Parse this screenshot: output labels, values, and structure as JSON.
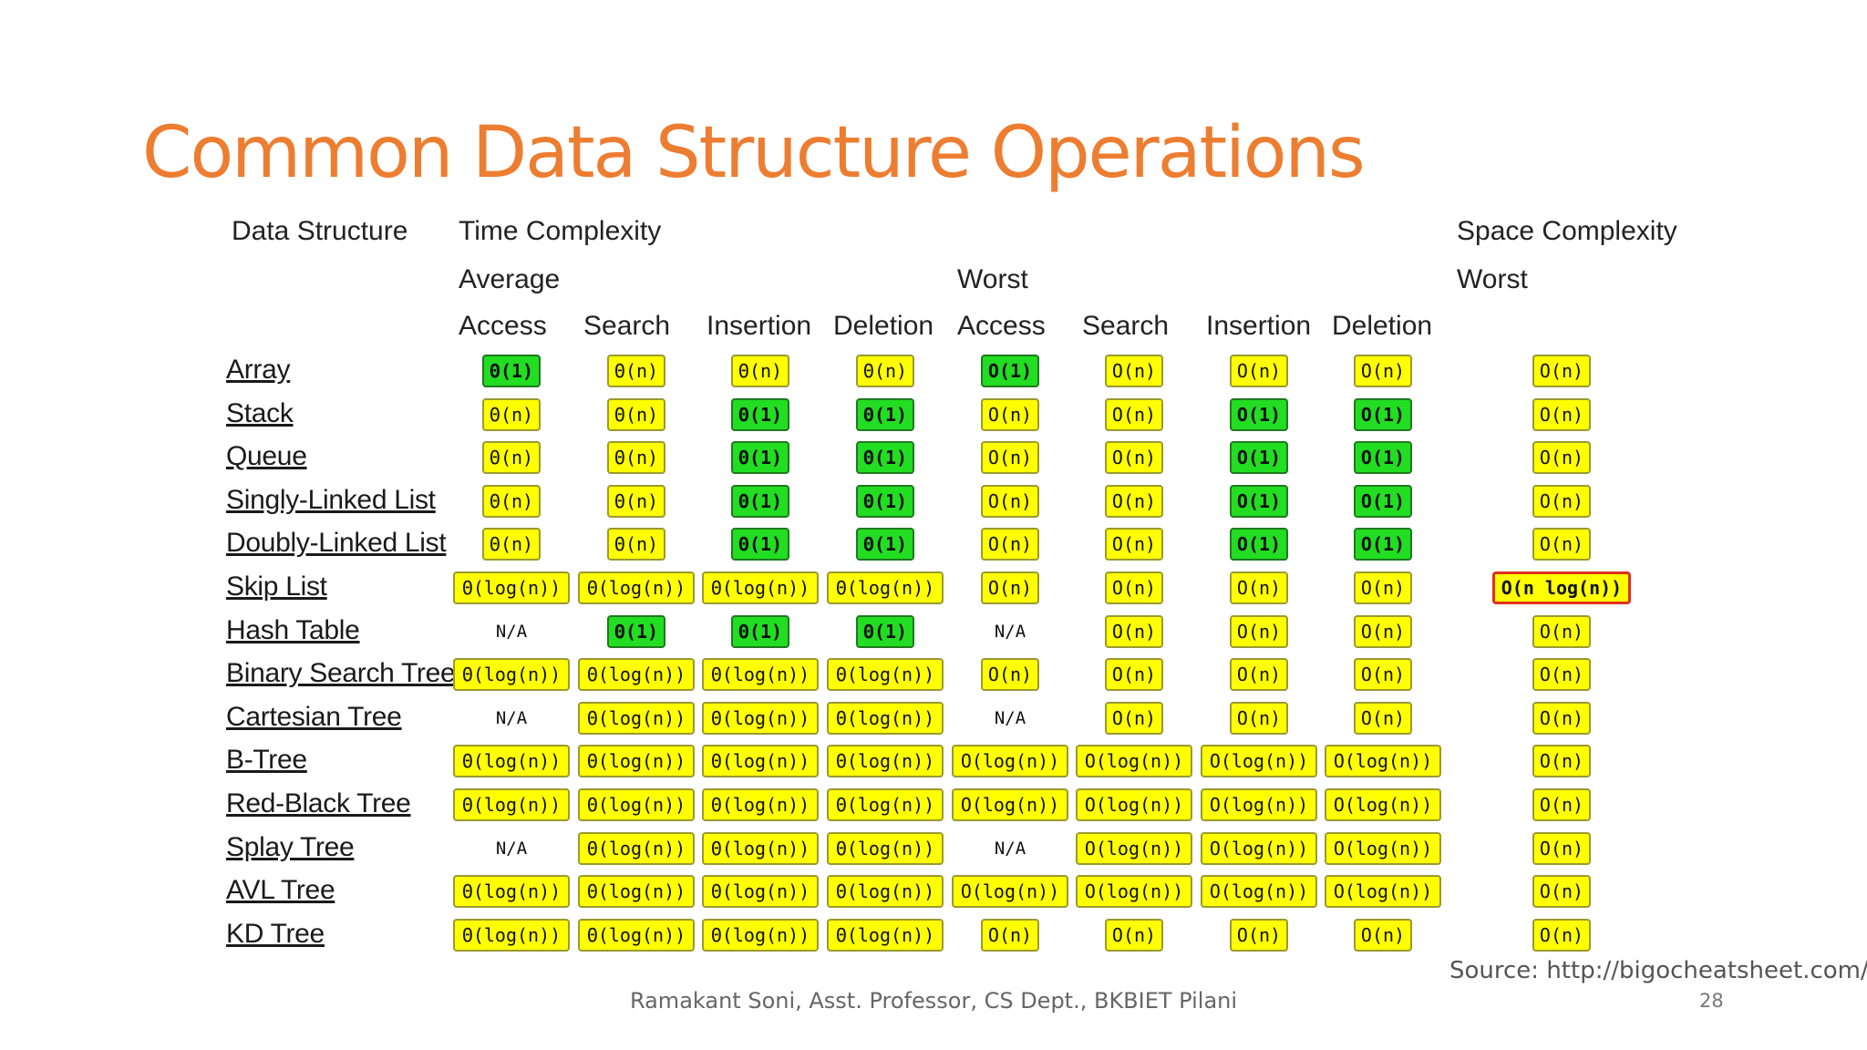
{
  "title": "Common Data Structure Operations",
  "headers": {
    "data_structure": "Data Structure",
    "time_complexity": "Time Complexity",
    "space_complexity": "Space Complexity",
    "average": "Average",
    "worst": "Worst",
    "space_worst": "Worst",
    "columns": [
      "Access",
      "Search",
      "Insertion",
      "Deletion",
      "Access",
      "Search",
      "Insertion",
      "Deletion"
    ]
  },
  "colors": {
    "title": "#ED7D31",
    "good": "#22dd22",
    "fair": "#ffff00",
    "bad_border": "#e0301e"
  },
  "rows": [
    {
      "name": "Array",
      "cells": [
        [
          "Θ(1)",
          "green"
        ],
        [
          "Θ(n)",
          "yellow"
        ],
        [
          "Θ(n)",
          "yellow"
        ],
        [
          "Θ(n)",
          "yellow"
        ],
        [
          "O(1)",
          "green"
        ],
        [
          "O(n)",
          "yellow"
        ],
        [
          "O(n)",
          "yellow"
        ],
        [
          "O(n)",
          "yellow"
        ],
        [
          "O(n)",
          "yellow"
        ]
      ]
    },
    {
      "name": "Stack",
      "cells": [
        [
          "Θ(n)",
          "yellow"
        ],
        [
          "Θ(n)",
          "yellow"
        ],
        [
          "Θ(1)",
          "green"
        ],
        [
          "Θ(1)",
          "green"
        ],
        [
          "O(n)",
          "yellow"
        ],
        [
          "O(n)",
          "yellow"
        ],
        [
          "O(1)",
          "green"
        ],
        [
          "O(1)",
          "green"
        ],
        [
          "O(n)",
          "yellow"
        ]
      ]
    },
    {
      "name": "Queue",
      "cells": [
        [
          "Θ(n)",
          "yellow"
        ],
        [
          "Θ(n)",
          "yellow"
        ],
        [
          "Θ(1)",
          "green"
        ],
        [
          "Θ(1)",
          "green"
        ],
        [
          "O(n)",
          "yellow"
        ],
        [
          "O(n)",
          "yellow"
        ],
        [
          "O(1)",
          "green"
        ],
        [
          "O(1)",
          "green"
        ],
        [
          "O(n)",
          "yellow"
        ]
      ]
    },
    {
      "name": "Singly-Linked List",
      "cells": [
        [
          "Θ(n)",
          "yellow"
        ],
        [
          "Θ(n)",
          "yellow"
        ],
        [
          "Θ(1)",
          "green"
        ],
        [
          "Θ(1)",
          "green"
        ],
        [
          "O(n)",
          "yellow"
        ],
        [
          "O(n)",
          "yellow"
        ],
        [
          "O(1)",
          "green"
        ],
        [
          "O(1)",
          "green"
        ],
        [
          "O(n)",
          "yellow"
        ]
      ]
    },
    {
      "name": "Doubly-Linked List",
      "cells": [
        [
          "Θ(n)",
          "yellow"
        ],
        [
          "Θ(n)",
          "yellow"
        ],
        [
          "Θ(1)",
          "green"
        ],
        [
          "Θ(1)",
          "green"
        ],
        [
          "O(n)",
          "yellow"
        ],
        [
          "O(n)",
          "yellow"
        ],
        [
          "O(1)",
          "green"
        ],
        [
          "O(1)",
          "green"
        ],
        [
          "O(n)",
          "yellow"
        ]
      ]
    },
    {
      "name": "Skip List",
      "cells": [
        [
          "Θ(log(n))",
          "yellow"
        ],
        [
          "Θ(log(n))",
          "yellow"
        ],
        [
          "Θ(log(n))",
          "yellow"
        ],
        [
          "Θ(log(n))",
          "yellow"
        ],
        [
          "O(n)",
          "yellow"
        ],
        [
          "O(n)",
          "yellow"
        ],
        [
          "O(n)",
          "yellow"
        ],
        [
          "O(n)",
          "yellow"
        ],
        [
          "O(n log(n))",
          "red"
        ]
      ]
    },
    {
      "name": "Hash Table",
      "cells": [
        [
          "N/A",
          "na"
        ],
        [
          "Θ(1)",
          "green"
        ],
        [
          "Θ(1)",
          "green"
        ],
        [
          "Θ(1)",
          "green"
        ],
        [
          "N/A",
          "na"
        ],
        [
          "O(n)",
          "yellow"
        ],
        [
          "O(n)",
          "yellow"
        ],
        [
          "O(n)",
          "yellow"
        ],
        [
          "O(n)",
          "yellow"
        ]
      ]
    },
    {
      "name": "Binary Search Tree",
      "cells": [
        [
          "Θ(log(n))",
          "yellow"
        ],
        [
          "Θ(log(n))",
          "yellow"
        ],
        [
          "Θ(log(n))",
          "yellow"
        ],
        [
          "Θ(log(n))",
          "yellow"
        ],
        [
          "O(n)",
          "yellow"
        ],
        [
          "O(n)",
          "yellow"
        ],
        [
          "O(n)",
          "yellow"
        ],
        [
          "O(n)",
          "yellow"
        ],
        [
          "O(n)",
          "yellow"
        ]
      ]
    },
    {
      "name": "Cartesian Tree",
      "cells": [
        [
          "N/A",
          "na"
        ],
        [
          "Θ(log(n))",
          "yellow"
        ],
        [
          "Θ(log(n))",
          "yellow"
        ],
        [
          "Θ(log(n))",
          "yellow"
        ],
        [
          "N/A",
          "na"
        ],
        [
          "O(n)",
          "yellow"
        ],
        [
          "O(n)",
          "yellow"
        ],
        [
          "O(n)",
          "yellow"
        ],
        [
          "O(n)",
          "yellow"
        ]
      ]
    },
    {
      "name": "B-Tree",
      "cells": [
        [
          "Θ(log(n))",
          "yellow"
        ],
        [
          "Θ(log(n))",
          "yellow"
        ],
        [
          "Θ(log(n))",
          "yellow"
        ],
        [
          "Θ(log(n))",
          "yellow"
        ],
        [
          "O(log(n))",
          "yellow"
        ],
        [
          "O(log(n))",
          "yellow"
        ],
        [
          "O(log(n))",
          "yellow"
        ],
        [
          "O(log(n))",
          "yellow"
        ],
        [
          "O(n)",
          "yellow"
        ]
      ]
    },
    {
      "name": "Red-Black Tree",
      "cells": [
        [
          "Θ(log(n))",
          "yellow"
        ],
        [
          "Θ(log(n))",
          "yellow"
        ],
        [
          "Θ(log(n))",
          "yellow"
        ],
        [
          "Θ(log(n))",
          "yellow"
        ],
        [
          "O(log(n))",
          "yellow"
        ],
        [
          "O(log(n))",
          "yellow"
        ],
        [
          "O(log(n))",
          "yellow"
        ],
        [
          "O(log(n))",
          "yellow"
        ],
        [
          "O(n)",
          "yellow"
        ]
      ]
    },
    {
      "name": "Splay Tree",
      "cells": [
        [
          "N/A",
          "na"
        ],
        [
          "Θ(log(n))",
          "yellow"
        ],
        [
          "Θ(log(n))",
          "yellow"
        ],
        [
          "Θ(log(n))",
          "yellow"
        ],
        [
          "N/A",
          "na"
        ],
        [
          "O(log(n))",
          "yellow"
        ],
        [
          "O(log(n))",
          "yellow"
        ],
        [
          "O(log(n))",
          "yellow"
        ],
        [
          "O(n)",
          "yellow"
        ]
      ]
    },
    {
      "name": "AVL Tree",
      "cells": [
        [
          "Θ(log(n))",
          "yellow"
        ],
        [
          "Θ(log(n))",
          "yellow"
        ],
        [
          "Θ(log(n))",
          "yellow"
        ],
        [
          "Θ(log(n))",
          "yellow"
        ],
        [
          "O(log(n))",
          "yellow"
        ],
        [
          "O(log(n))",
          "yellow"
        ],
        [
          "O(log(n))",
          "yellow"
        ],
        [
          "O(log(n))",
          "yellow"
        ],
        [
          "O(n)",
          "yellow"
        ]
      ]
    },
    {
      "name": "KD Tree",
      "cells": [
        [
          "Θ(log(n))",
          "yellow"
        ],
        [
          "Θ(log(n))",
          "yellow"
        ],
        [
          "Θ(log(n))",
          "yellow"
        ],
        [
          "Θ(log(n))",
          "yellow"
        ],
        [
          "O(n)",
          "yellow"
        ],
        [
          "O(n)",
          "yellow"
        ],
        [
          "O(n)",
          "yellow"
        ],
        [
          "O(n)",
          "yellow"
        ],
        [
          "O(n)",
          "yellow"
        ]
      ]
    }
  ],
  "source": "Source: http://bigocheatsheet.com/",
  "footer": "Ramakant Soni, Asst. Professor, CS Dept., BKBIET Pilani",
  "page_number": "28"
}
